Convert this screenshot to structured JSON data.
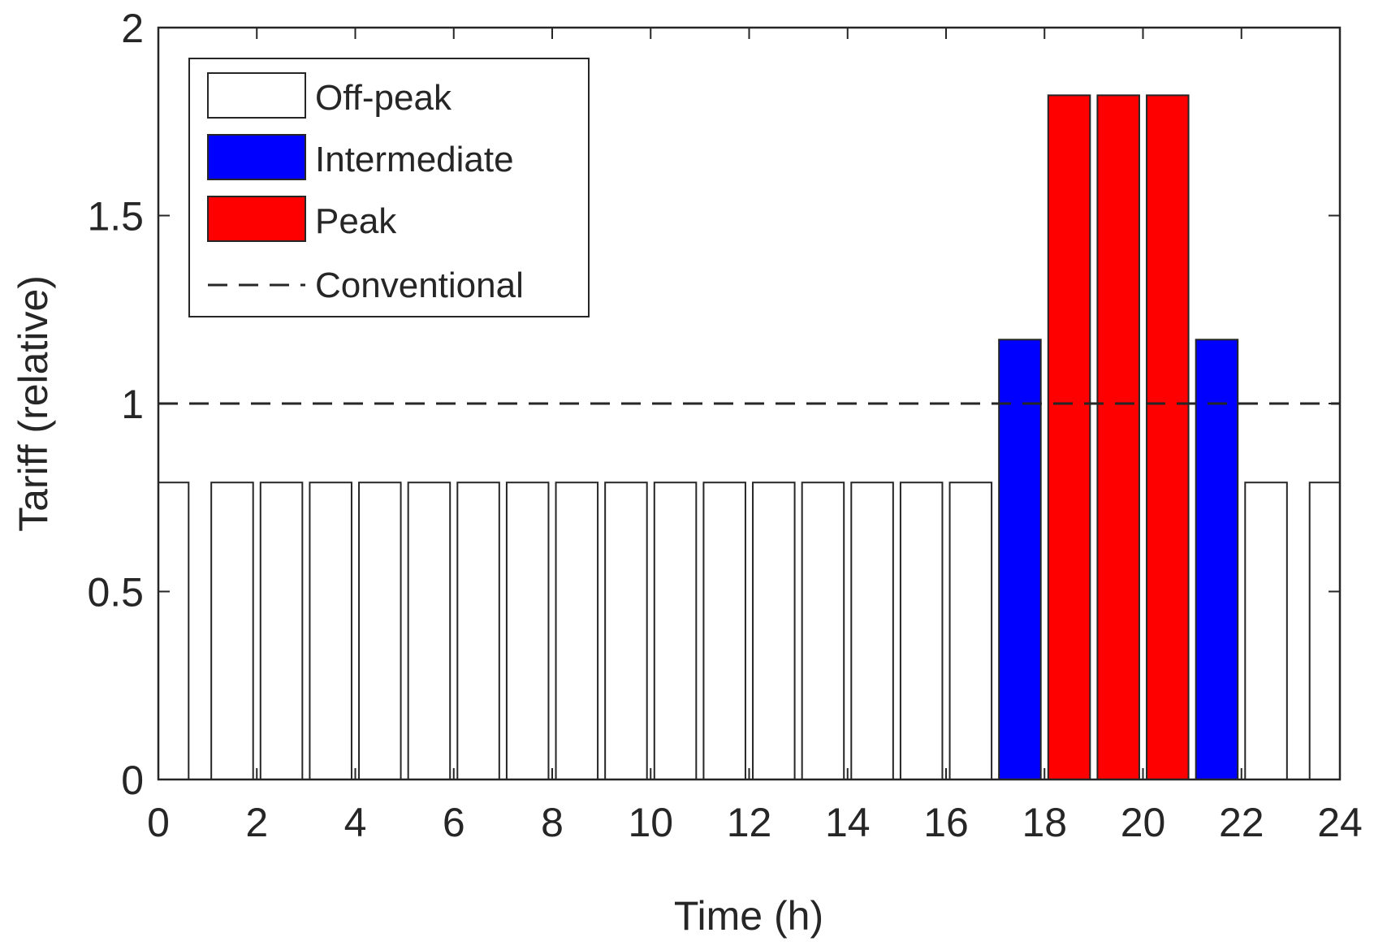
{
  "chart_data": {
    "type": "bar",
    "title": "",
    "xlabel": "Time (h)",
    "ylabel": "Tariff (relative)",
    "xlim": [
      0,
      24
    ],
    "ylim": [
      0,
      2
    ],
    "xticks": [
      0,
      2,
      4,
      6,
      8,
      10,
      12,
      14,
      16,
      18,
      20,
      22,
      24
    ],
    "yticks": [
      0,
      0.5,
      1,
      1.5,
      2
    ],
    "xtick_labels": [
      "0",
      "2",
      "4",
      "6",
      "8",
      "10",
      "12",
      "14",
      "16",
      "18",
      "20",
      "22",
      "24"
    ],
    "ytick_labels": [
      "0",
      "0.5",
      "1",
      "1.5",
      "2"
    ],
    "bar_width_h": 0.85,
    "categories": [
      0.19,
      1.5,
      2.5,
      3.5,
      4.5,
      5.5,
      6.5,
      7.5,
      8.5,
      9.5,
      10.5,
      11.5,
      12.5,
      13.5,
      14.5,
      15.5,
      16.5,
      17.5,
      18.5,
      19.5,
      20.5,
      21.5,
      22.5,
      23.81
    ],
    "values": [
      0.79,
      0.79,
      0.79,
      0.79,
      0.79,
      0.79,
      0.79,
      0.79,
      0.79,
      0.79,
      0.79,
      0.79,
      0.79,
      0.79,
      0.79,
      0.79,
      0.79,
      1.17,
      1.82,
      1.82,
      1.82,
      1.17,
      0.79,
      0.79
    ],
    "bar_class": [
      "offpeak",
      "offpeak",
      "offpeak",
      "offpeak",
      "offpeak",
      "offpeak",
      "offpeak",
      "offpeak",
      "offpeak",
      "offpeak",
      "offpeak",
      "offpeak",
      "offpeak",
      "offpeak",
      "offpeak",
      "offpeak",
      "offpeak",
      "intermediate",
      "peak",
      "peak",
      "peak",
      "intermediate",
      "offpeak",
      "offpeak"
    ],
    "classes": {
      "offpeak": {
        "label": "Off-peak",
        "color": "#ffffff"
      },
      "intermediate": {
        "label": "Intermediate",
        "color": "#0000ff"
      },
      "peak": {
        "label": "Peak",
        "color": "#ff0000"
      }
    },
    "reference_line": {
      "label": "Conventional",
      "value": 1,
      "color": "#262626",
      "style": "dashed"
    },
    "legend": [
      "Off-peak",
      "Intermediate",
      "Peak",
      "Conventional"
    ],
    "legend_position": "top-left",
    "grid": false
  }
}
